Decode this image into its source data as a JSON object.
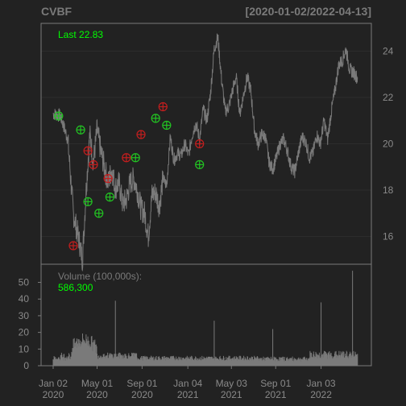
{
  "header": {
    "symbol": "CVBF",
    "range": "[2020-01-02/2022-04-13]"
  },
  "chart_data": {
    "type": "line",
    "last_label": "Last 22.83",
    "price_axis": {
      "ylim": [
        14.8,
        25.2
      ],
      "ticks": [
        16,
        18,
        20,
        22,
        24
      ]
    },
    "x_axis": {
      "ticks": [
        {
          "day": 0,
          "label1": "Jan 02",
          "label2": "2020"
        },
        {
          "day": 120,
          "label1": "May 01",
          "label2": "2020"
        },
        {
          "day": 243,
          "label1": "Sep 01",
          "label2": "2020"
        },
        {
          "day": 368,
          "label1": "Jan 04",
          "label2": "2021"
        },
        {
          "day": 487,
          "label1": "May 03",
          "label2": "2021"
        },
        {
          "day": 608,
          "label1": "Sep 01",
          "label2": "2021"
        },
        {
          "day": 732,
          "label1": "Jan 03",
          "label2": "2022"
        }
      ],
      "end_day": 832
    },
    "price_series": [
      [
        0,
        21.3
      ],
      [
        20,
        21.2
      ],
      [
        40,
        20.2
      ],
      [
        55,
        17.0
      ],
      [
        70,
        15.9
      ],
      [
        80,
        15.0
      ],
      [
        90,
        18.0
      ],
      [
        100,
        20.4
      ],
      [
        110,
        19.2
      ],
      [
        120,
        20.6
      ],
      [
        130,
        19.7
      ],
      [
        140,
        19.0
      ],
      [
        150,
        18.3
      ],
      [
        160,
        18.9
      ],
      [
        170,
        18.1
      ],
      [
        180,
        18.3
      ],
      [
        190,
        17.4
      ],
      [
        200,
        17.6
      ],
      [
        210,
        18.3
      ],
      [
        220,
        18.5
      ],
      [
        230,
        18.0
      ],
      [
        240,
        17.2
      ],
      [
        250,
        17.0
      ],
      [
        260,
        16.0
      ],
      [
        270,
        17.8
      ],
      [
        280,
        17.9
      ],
      [
        290,
        17.3
      ],
      [
        300,
        18.5
      ],
      [
        310,
        18.2
      ],
      [
        320,
        20.3
      ],
      [
        330,
        19.3
      ],
      [
        340,
        19.6
      ],
      [
        350,
        19.5
      ],
      [
        360,
        20.0
      ],
      [
        370,
        19.5
      ],
      [
        380,
        20.4
      ],
      [
        390,
        20.9
      ],
      [
        400,
        20.2
      ],
      [
        410,
        21.5
      ],
      [
        420,
        21.0
      ],
      [
        430,
        22.2
      ],
      [
        440,
        24.1
      ],
      [
        450,
        24.6
      ],
      [
        460,
        22.8
      ],
      [
        470,
        21.4
      ],
      [
        480,
        21.6
      ],
      [
        490,
        22.3
      ],
      [
        500,
        22.9
      ],
      [
        510,
        21.3
      ],
      [
        520,
        22.1
      ],
      [
        530,
        22.9
      ],
      [
        540,
        22.3
      ],
      [
        550,
        20.6
      ],
      [
        560,
        20.0
      ],
      [
        570,
        20.4
      ],
      [
        580,
        20.3
      ],
      [
        590,
        19.2
      ],
      [
        600,
        18.9
      ],
      [
        610,
        19.4
      ],
      [
        620,
        20.0
      ],
      [
        630,
        20.2
      ],
      [
        640,
        19.7
      ],
      [
        650,
        19.0
      ],
      [
        660,
        18.8
      ],
      [
        670,
        19.6
      ],
      [
        680,
        20.3
      ],
      [
        690,
        20.1
      ],
      [
        700,
        19.4
      ],
      [
        710,
        19.6
      ],
      [
        720,
        20.4
      ],
      [
        730,
        20.0
      ],
      [
        740,
        21.0
      ],
      [
        750,
        20.2
      ],
      [
        760,
        21.4
      ],
      [
        770,
        22.3
      ],
      [
        780,
        23.4
      ],
      [
        790,
        23.6
      ],
      [
        800,
        24.1
      ],
      [
        810,
        23.2
      ],
      [
        820,
        23.1
      ],
      [
        832,
        22.83
      ]
    ],
    "signals": {
      "buy": [
        [
          15,
          21.2
        ],
        [
          75,
          20.6
        ],
        [
          95,
          17.5
        ],
        [
          125,
          17.0
        ],
        [
          155,
          17.7
        ],
        [
          225,
          19.4
        ],
        [
          280,
          21.1
        ],
        [
          310,
          20.8
        ],
        [
          400,
          19.1
        ]
      ],
      "sell": [
        [
          55,
          15.6
        ],
        [
          95,
          19.7
        ],
        [
          110,
          19.1
        ],
        [
          150,
          18.5
        ],
        [
          200,
          19.4
        ],
        [
          240,
          20.4
        ],
        [
          300,
          21.6
        ],
        [
          400,
          20.0
        ]
      ]
    },
    "volume": {
      "label": "Volume (100,000s):",
      "last_value": "586,300",
      "ylim": [
        0,
        58
      ],
      "ticks": [
        0,
        10,
        20,
        30,
        40,
        50
      ],
      "spikes": [
        [
          170,
          39
        ],
        [
          440,
          27
        ],
        [
          600,
          22
        ],
        [
          732,
          38
        ],
        [
          818,
          57
        ]
      ]
    },
    "colors": {
      "price": "#7a7a7a",
      "buy": "#22c422",
      "sell": "#c41e1e",
      "grid": "#2c2c2c",
      "frame": "#7a7a7a"
    }
  }
}
